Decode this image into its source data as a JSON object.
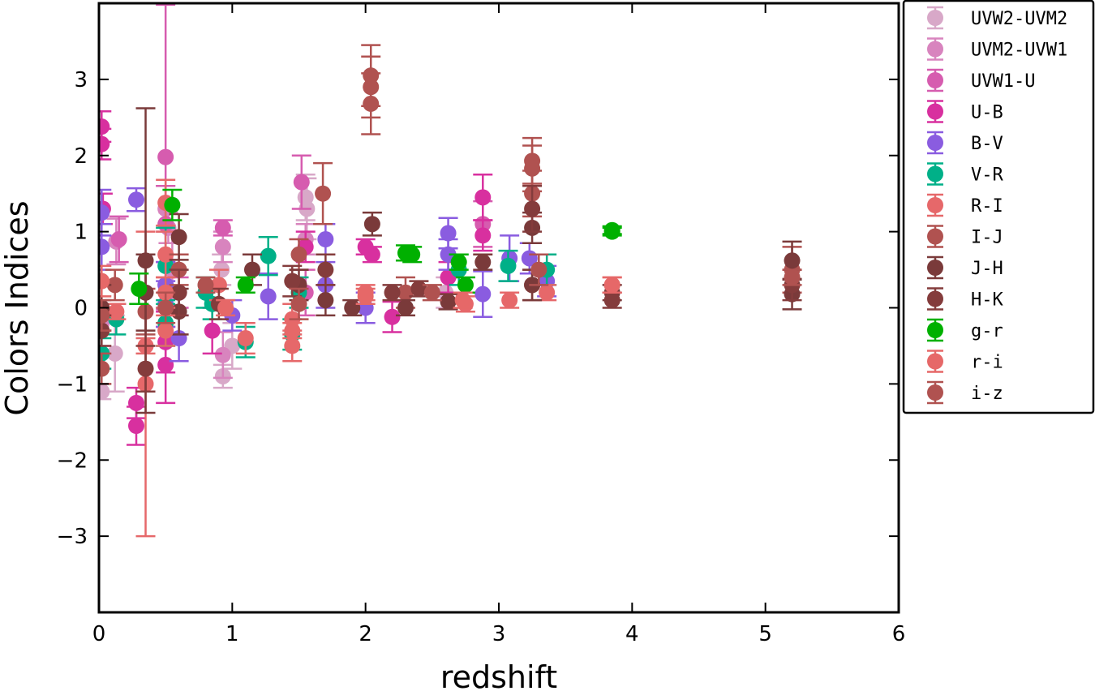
{
  "chart_data": {
    "type": "scatter",
    "title": "",
    "xlabel": "redshift",
    "ylabel": "Colors Indices",
    "xlim": [
      0,
      6
    ],
    "ylim": [
      -4,
      4
    ],
    "xticks": [
      "0",
      "1",
      "2",
      "3",
      "4",
      "5",
      "6"
    ],
    "yticks": [
      "3",
      "2",
      "1",
      "0",
      "−1",
      "−2",
      "−3"
    ],
    "grid": false,
    "legend_position": "outside-top-right",
    "error_bars": true,
    "point_format": "[x, y, y_error]",
    "series": [
      {
        "name": "UVW2-UVM2",
        "color": "#d8a8c8",
        "points": [
          [
            0.02,
            -1.1,
            0.1
          ],
          [
            0.12,
            -0.6,
            0.5
          ],
          [
            0.5,
            0.3,
            0.3
          ],
          [
            0.92,
            0.5,
            0.2
          ],
          [
            0.93,
            -0.9,
            0.15
          ],
          [
            1.55,
            1.45,
            0.3
          ],
          [
            1.56,
            1.3,
            0.4
          ],
          [
            1.0,
            -0.5,
            0.3
          ],
          [
            2.6,
            0.2,
            0.2
          ]
        ]
      },
      {
        "name": "UVM2-UVW1",
        "color": "#d884be",
        "points": [
          [
            0.02,
            -0.2,
            0.3
          ],
          [
            0.13,
            0.87,
            0.3
          ],
          [
            0.5,
            1.3,
            0.3
          ],
          [
            0.52,
            1.05,
            0.2
          ],
          [
            0.93,
            0.8,
            0.2
          ],
          [
            0.93,
            -0.62,
            0.3
          ],
          [
            0.55,
            0.5,
            0.5
          ],
          [
            1.55,
            0.9,
            0.2
          ]
        ]
      },
      {
        "name": "UVW1-U",
        "color": "#d65caf",
        "points": [
          [
            0.5,
            1.98,
            2.0
          ],
          [
            0.93,
            1.05,
            0.1
          ],
          [
            1.52,
            1.65,
            0.35
          ],
          [
            0.5,
            1.1,
            0.5
          ],
          [
            0.6,
            0.2,
            0.2
          ],
          [
            1.55,
            0.2,
            0.3
          ],
          [
            2.88,
            1.1,
            0.3
          ],
          [
            0.15,
            0.9,
            0.3
          ]
        ]
      },
      {
        "name": "U-B",
        "color": "#d8309f",
        "points": [
          [
            0.02,
            2.38,
            0.2
          ],
          [
            0.02,
            2.15,
            0.2
          ],
          [
            0.28,
            -1.25,
            0.2
          ],
          [
            0.28,
            -1.55,
            0.25
          ],
          [
            0.5,
            -0.75,
            0.5
          ],
          [
            0.5,
            -0.45,
            0.4
          ],
          [
            0.85,
            -0.3,
            0.3
          ],
          [
            2.0,
            0.8,
            0.1
          ],
          [
            2.05,
            0.7,
            0.1
          ],
          [
            2.2,
            -0.12,
            0.2
          ],
          [
            2.88,
            1.45,
            0.3
          ],
          [
            2.88,
            0.95,
            0.2
          ],
          [
            0.03,
            1.3,
            0.2
          ],
          [
            1.55,
            0.8,
            0.2
          ],
          [
            2.62,
            0.4,
            0.2
          ]
        ]
      },
      {
        "name": "B-V",
        "color": "#8a5ce0",
        "points": [
          [
            0.02,
            1.25,
            0.3
          ],
          [
            0.02,
            0.8,
            0.3
          ],
          [
            0.28,
            1.42,
            0.15
          ],
          [
            0.5,
            0.3,
            0.3
          ],
          [
            0.5,
            0.05,
            0.3
          ],
          [
            0.6,
            -0.4,
            0.3
          ],
          [
            1.0,
            -0.1,
            0.2
          ],
          [
            1.27,
            0.15,
            0.3
          ],
          [
            1.7,
            0.9,
            0.2
          ],
          [
            1.7,
            0.3,
            0.3
          ],
          [
            2.0,
            0.0,
            0.2
          ],
          [
            2.62,
            0.98,
            0.2
          ],
          [
            2.62,
            0.7,
            0.2
          ],
          [
            2.88,
            0.18,
            0.3
          ],
          [
            3.08,
            0.65,
            0.3
          ],
          [
            3.23,
            0.65,
            0.2
          ],
          [
            3.36,
            0.35,
            0.2
          ]
        ]
      },
      {
        "name": "V-R",
        "color": "#00b088",
        "points": [
          [
            0.02,
            -0.6,
            0.2
          ],
          [
            0.13,
            -0.15,
            0.2
          ],
          [
            0.5,
            -0.2,
            0.3
          ],
          [
            0.5,
            0.55,
            0.5
          ],
          [
            0.8,
            0.2,
            0.2
          ],
          [
            0.85,
            0.05,
            0.2
          ],
          [
            1.27,
            0.68,
            0.25
          ],
          [
            1.1,
            -0.45,
            0.2
          ],
          [
            1.45,
            -0.35,
            0.2
          ],
          [
            1.5,
            0.2,
            0.2
          ],
          [
            2.7,
            0.5,
            0.2
          ],
          [
            3.07,
            0.55,
            0.2
          ],
          [
            3.36,
            0.5,
            0.2
          ]
        ]
      },
      {
        "name": "R-I",
        "color": "#e6686a",
        "points": [
          [
            0.13,
            -0.05,
            0.1
          ],
          [
            0.35,
            -0.5,
            0.1
          ],
          [
            0.35,
            -1.0,
            2.0
          ],
          [
            0.5,
            0.7,
            0.3
          ],
          [
            0.5,
            1.38,
            0.3
          ],
          [
            0.9,
            0.3,
            0.2
          ],
          [
            1.1,
            -0.4,
            0.2
          ],
          [
            1.45,
            -0.5,
            0.2
          ],
          [
            1.45,
            -0.15,
            0.2
          ],
          [
            2.0,
            0.2,
            0.1
          ],
          [
            2.75,
            0.05,
            0.1
          ],
          [
            3.08,
            0.1,
            0.1
          ],
          [
            3.36,
            0.2,
            0.1
          ],
          [
            3.85,
            0.3,
            0.1
          ]
        ]
      },
      {
        "name": "I-J",
        "color": "#b05250",
        "points": [
          [
            0.02,
            -0.8,
            0.2
          ],
          [
            0.12,
            0.3,
            0.2
          ],
          [
            0.35,
            -0.05,
            0.3
          ],
          [
            0.6,
            0.5,
            0.2
          ],
          [
            1.5,
            0.7,
            0.2
          ],
          [
            1.68,
            1.5,
            0.4
          ],
          [
            2.04,
            3.05,
            0.4
          ],
          [
            2.04,
            2.9,
            0.4
          ],
          [
            2.04,
            2.68,
            0.4
          ],
          [
            3.25,
            1.93,
            0.3
          ],
          [
            3.25,
            1.83,
            0.3
          ],
          [
            3.25,
            1.5,
            0.3
          ],
          [
            3.25,
            0.3,
            0.2
          ],
          [
            5.2,
            0.5,
            0.3
          ],
          [
            2.3,
            0.2,
            0.2
          ]
        ]
      },
      {
        "name": "J-H",
        "color": "#7a3a3a",
        "points": [
          [
            0.02,
            0.0,
            0.3
          ],
          [
            0.35,
            0.62,
            2.0
          ],
          [
            0.35,
            0.2,
            0.5
          ],
          [
            0.6,
            0.93,
            0.3
          ],
          [
            0.6,
            -0.05,
            0.3
          ],
          [
            1.15,
            0.5,
            0.2
          ],
          [
            1.5,
            0.3,
            0.2
          ],
          [
            1.7,
            0.1,
            0.2
          ],
          [
            2.05,
            1.1,
            0.15
          ],
          [
            1.9,
            0.0,
            0.1
          ],
          [
            2.3,
            0.0,
            0.1
          ],
          [
            2.62,
            0.08,
            0.1
          ],
          [
            2.88,
            0.6,
            0.1
          ],
          [
            3.25,
            1.05,
            0.2
          ],
          [
            3.25,
            0.3,
            0.2
          ],
          [
            3.85,
            0.2,
            0.1
          ],
          [
            5.2,
            0.62,
            0.25
          ],
          [
            5.2,
            0.18,
            0.2
          ]
        ]
      },
      {
        "name": "H-K",
        "color": "#843c3c",
        "points": [
          [
            0.02,
            -0.3,
            0.2
          ],
          [
            0.35,
            -0.8,
            0.3
          ],
          [
            0.6,
            0.2,
            0.3
          ],
          [
            0.9,
            0.05,
            0.2
          ],
          [
            1.45,
            0.35,
            0.2
          ],
          [
            1.7,
            0.5,
            0.2
          ],
          [
            2.4,
            0.25,
            0.1
          ],
          [
            3.25,
            1.3,
            0.3
          ],
          [
            3.85,
            0.1,
            0.1
          ],
          [
            5.2,
            0.3,
            0.2
          ],
          [
            2.2,
            0.2,
            0.1
          ]
        ]
      },
      {
        "name": "g-r",
        "color": "#00b000",
        "points": [
          [
            0.55,
            1.35,
            0.2
          ],
          [
            0.3,
            0.25,
            0.2
          ],
          [
            1.1,
            0.3,
            0.1
          ],
          [
            2.3,
            0.72,
            0.1
          ],
          [
            2.35,
            0.7,
            0.1
          ],
          [
            2.7,
            0.6,
            0.1
          ],
          [
            2.75,
            0.3,
            0.1
          ],
          [
            3.85,
            1.02,
            0.05
          ],
          [
            3.85,
            1.0,
            0.05
          ]
        ]
      },
      {
        "name": "r-i",
        "color": "#e66868",
        "points": [
          [
            0.02,
            0.35,
            0.2
          ],
          [
            0.5,
            0.2,
            0.2
          ],
          [
            0.95,
            0.0,
            0.1
          ],
          [
            1.45,
            -0.3,
            0.1
          ],
          [
            2.0,
            0.15,
            0.1
          ],
          [
            2.73,
            0.1,
            0.1
          ],
          [
            3.85,
            0.3,
            0.1
          ],
          [
            0.5,
            -0.3,
            0.2
          ]
        ]
      },
      {
        "name": "i-z",
        "color": "#b05250",
        "points": [
          [
            0.02,
            -0.1,
            0.2
          ],
          [
            0.5,
            0.0,
            0.2
          ],
          [
            0.8,
            0.3,
            0.1
          ],
          [
            1.5,
            0.05,
            0.2
          ],
          [
            2.5,
            0.2,
            0.1
          ],
          [
            5.2,
            0.4,
            0.1
          ],
          [
            3.3,
            0.5,
            0.2
          ]
        ]
      }
    ]
  }
}
